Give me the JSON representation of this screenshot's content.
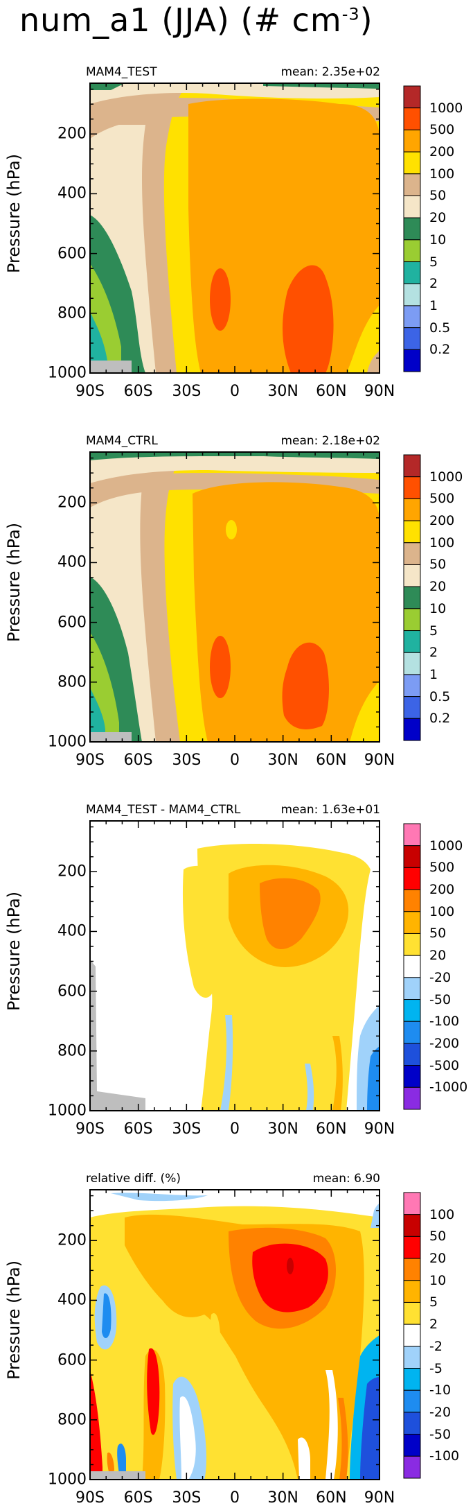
{
  "figure": {
    "title_text": "num_a1 (JJA) (# cm",
    "title_exp": "-3",
    "title_close": ")",
    "ylabel": "Pressure (hPa)",
    "yticks": [
      "200",
      "400",
      "600",
      "800",
      "1000"
    ],
    "xticks": [
      "90S",
      "60S",
      "30S",
      "0",
      "30N",
      "60N",
      "90N"
    ]
  },
  "colors": {
    "absolute_scale": [
      "#0000c8",
      "#3c64e6",
      "#7c9cf4",
      "#b4e1e1",
      "#20b2a0",
      "#9acd32",
      "#2e8b57",
      "#f5e6c8",
      "#dcb48c",
      "#ffe100",
      "#ffa500",
      "#ff5000",
      "#b42828"
    ],
    "diff_scale": [
      "#8a2be2",
      "#0000c8",
      "#1e50dc",
      "#1e8cf0",
      "#00b4f0",
      "#a0d2fa",
      "#ffffff",
      "#ffe132",
      "#ffb400",
      "#ff8200",
      "#ff0000",
      "#c80000",
      "#ff78b4"
    ],
    "missing": "#bebebe"
  },
  "chart_data": [
    {
      "type": "contour",
      "label_left": "MAM4_TEST",
      "label_right": "mean: 2.35e+02",
      "x": [
        "90S",
        "60S",
        "30S",
        "0",
        "30N",
        "60N",
        "90N"
      ],
      "y_levels_hPa": [
        200,
        400,
        600,
        800,
        1000
      ],
      "ylim": [
        1000,
        30
      ],
      "colorbar_labels": [
        "1000",
        "500",
        "200",
        "100",
        "50",
        "20",
        "10",
        "5",
        "2",
        "1",
        "0.5",
        "0.2"
      ],
      "mean": 235
    },
    {
      "type": "contour",
      "label_left": "MAM4_CTRL",
      "label_right": "mean: 2.18e+02",
      "x": [
        "90S",
        "60S",
        "30S",
        "0",
        "30N",
        "60N",
        "90N"
      ],
      "y_levels_hPa": [
        200,
        400,
        600,
        800,
        1000
      ],
      "ylim": [
        1000,
        30
      ],
      "colorbar_labels": [
        "1000",
        "500",
        "200",
        "100",
        "50",
        "20",
        "10",
        "5",
        "2",
        "1",
        "0.5",
        "0.2"
      ],
      "mean": 218
    },
    {
      "type": "contour",
      "label_left": "MAM4_TEST - MAM4_CTRL",
      "label_right": "mean: 1.63e+01",
      "x": [
        "90S",
        "60S",
        "30S",
        "0",
        "30N",
        "60N",
        "90N"
      ],
      "y_levels_hPa": [
        200,
        400,
        600,
        800,
        1000
      ],
      "ylim": [
        1000,
        30
      ],
      "colorbar_labels": [
        "1000",
        "500",
        "200",
        "100",
        "50",
        "20",
        "-20",
        "-50",
        "-100",
        "-200",
        "-500",
        "-1000"
      ],
      "mean": 16.3
    },
    {
      "type": "contour",
      "label_left": "relative diff. (%)",
      "label_right": "mean:   6.90",
      "x": [
        "90S",
        "60S",
        "30S",
        "0",
        "30N",
        "60N",
        "90N"
      ],
      "y_levels_hPa": [
        200,
        400,
        600,
        800,
        1000
      ],
      "ylim": [
        1000,
        30
      ],
      "colorbar_labels": [
        "100",
        "50",
        "20",
        "10",
        "5",
        "2",
        "-2",
        "-5",
        "-10",
        "-20",
        "-50",
        "-100"
      ],
      "mean": 6.9
    }
  ]
}
